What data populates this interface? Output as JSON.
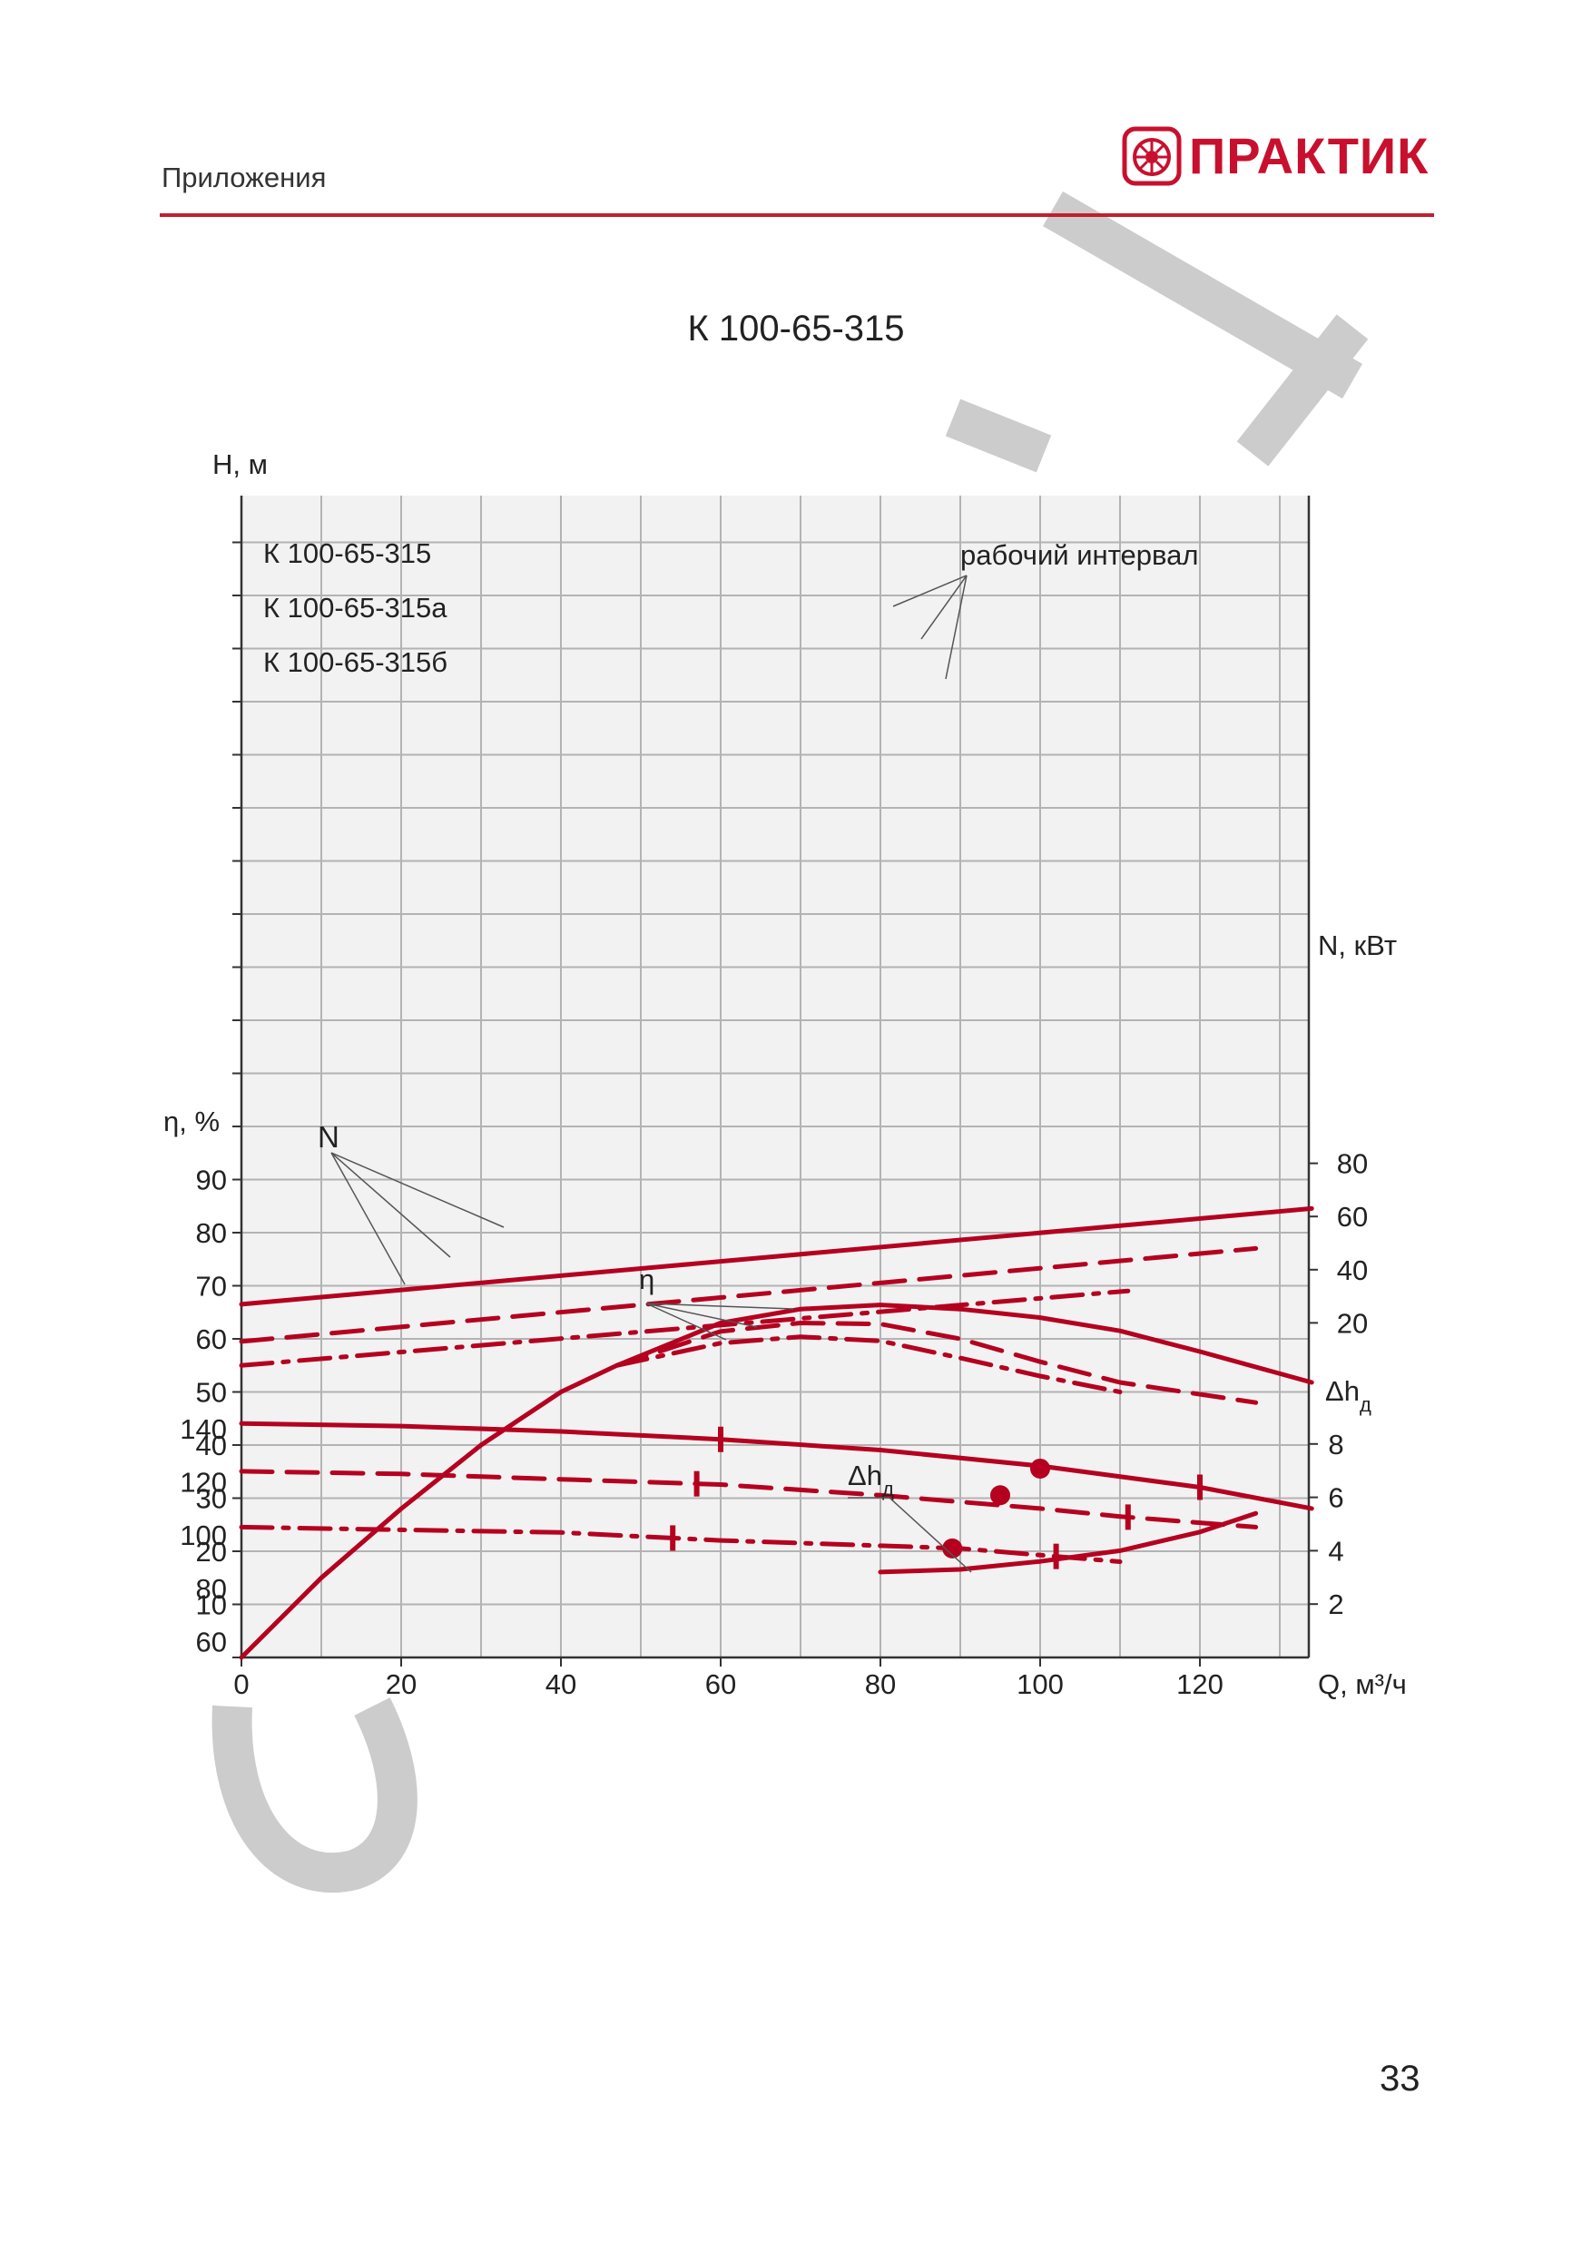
{
  "header": {
    "section": "Приложения",
    "logo_text": "ПРАКТИК"
  },
  "title": "К 100-65-315",
  "page_number": "33",
  "colors": {
    "accent": "#c01f2f",
    "curve": "#b5001f",
    "grid": "#b3b3b3",
    "watermark": "#cccccc"
  },
  "chart_data": {
    "type": "line",
    "x": {
      "label": "Q, м³/ч",
      "ticks": [
        0,
        20,
        40,
        60,
        80,
        100,
        120
      ],
      "range": [
        0,
        134
      ]
    },
    "axes": {
      "H": {
        "label": "H, м",
        "ticks": [
          60,
          80,
          100,
          120,
          140
        ]
      },
      "eta": {
        "label": "η, %",
        "ticks": [
          10,
          20,
          30,
          40,
          50,
          60,
          70,
          80,
          90
        ]
      },
      "N": {
        "label": "N, кВт",
        "ticks": [
          20,
          40,
          60,
          80
        ]
      },
      "dh": {
        "label": "Δhд",
        "ticks": [
          2,
          4,
          6,
          8
        ]
      }
    },
    "grid": true,
    "annotations": {
      "working_interval": "рабочий интервал",
      "N": "N",
      "eta": "η",
      "dh": "Δhд"
    },
    "series": [
      {
        "name": "К 100-65-315",
        "axis": "H",
        "style": "solid",
        "points": [
          [
            0,
            142
          ],
          [
            20,
            141
          ],
          [
            40,
            139
          ],
          [
            60,
            136
          ],
          [
            80,
            132
          ],
          [
            100,
            126
          ],
          [
            120,
            118
          ],
          [
            134,
            110
          ]
        ],
        "interval": [
          60,
          120
        ],
        "bep": [
          100,
          125
        ]
      },
      {
        "name": "К 100-65-315а",
        "axis": "H",
        "style": "dash",
        "points": [
          [
            0,
            124
          ],
          [
            20,
            123
          ],
          [
            40,
            121
          ],
          [
            60,
            119
          ],
          [
            80,
            115
          ],
          [
            100,
            110
          ],
          [
            110,
            107
          ],
          [
            127,
            103
          ]
        ],
        "interval": [
          57,
          111
        ],
        "bep": [
          95,
          115
        ]
      },
      {
        "name": "К 100-65-315б",
        "axis": "H",
        "style": "dashdot",
        "points": [
          [
            0,
            103
          ],
          [
            20,
            102
          ],
          [
            40,
            101
          ],
          [
            60,
            98
          ],
          [
            80,
            96
          ],
          [
            90,
            95
          ],
          [
            110,
            90
          ]
        ],
        "interval": [
          54,
          102
        ],
        "bep": [
          89,
          95
        ]
      },
      {
        "axis": "N",
        "style": "solid",
        "points": [
          [
            0,
            27
          ],
          [
            134,
            63
          ]
        ]
      },
      {
        "axis": "N",
        "style": "dash",
        "points": [
          [
            0,
            13
          ],
          [
            127,
            48
          ]
        ]
      },
      {
        "axis": "N",
        "style": "dashdot",
        "points": [
          [
            0,
            4
          ],
          [
            111,
            32
          ]
        ]
      },
      {
        "axis": "eta",
        "style": "solid",
        "points": [
          [
            0,
            0
          ],
          [
            10,
            15
          ],
          [
            20,
            28
          ],
          [
            30,
            40
          ],
          [
            40,
            50
          ],
          [
            47,
            55
          ],
          [
            60,
            63
          ],
          [
            70,
            65.6
          ],
          [
            80,
            66.4
          ],
          [
            90,
            65.6
          ],
          [
            100,
            64
          ],
          [
            110,
            61.5
          ],
          [
            120,
            57.6
          ],
          [
            134,
            51.8
          ]
        ]
      },
      {
        "axis": "eta",
        "style": "dash",
        "points": [
          [
            47,
            55
          ],
          [
            60,
            61.4
          ],
          [
            70,
            63
          ],
          [
            80,
            62.8
          ],
          [
            90,
            60
          ],
          [
            100,
            55.7
          ],
          [
            110,
            51.8
          ],
          [
            127,
            48
          ]
        ]
      },
      {
        "axis": "eta",
        "style": "dashdot",
        "points": [
          [
            47,
            55
          ],
          [
            60,
            59.2
          ],
          [
            70,
            60.4
          ],
          [
            80,
            59.6
          ],
          [
            90,
            56.4
          ],
          [
            100,
            53
          ],
          [
            110,
            50
          ]
        ]
      },
      {
        "axis": "dh",
        "style": "solid",
        "points": [
          [
            80,
            3.2
          ],
          [
            90,
            3.3
          ],
          [
            100,
            3.6
          ],
          [
            110,
            4.0
          ],
          [
            120,
            4.7
          ],
          [
            127,
            5.4
          ]
        ]
      }
    ]
  }
}
